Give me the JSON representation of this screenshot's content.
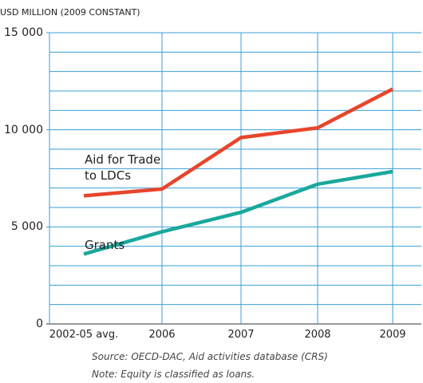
{
  "chart_data": {
    "type": "line",
    "y_label": "USD MILLION (2009 CONSTANT)",
    "categories": [
      "2002-05 avg.",
      "2006",
      "2007",
      "2008",
      "2009"
    ],
    "series": [
      {
        "name": "Aid for Trade to LDCs",
        "color": "#e8452c",
        "values": [
          6600,
          6950,
          9600,
          10100,
          12100
        ]
      },
      {
        "name": "Grants",
        "color": "#1aa89c",
        "values": [
          3600,
          4750,
          5750,
          7200,
          7850
        ]
      }
    ],
    "ylim": [
      0,
      15000
    ],
    "yticks": [
      0,
      {
        "value": 5000,
        "label": "5 000"
      },
      {
        "value": 10000,
        "label": "10 000"
      },
      {
        "value": 15000,
        "label": "15 000"
      }
    ],
    "minor_grid": [
      1000,
      2000,
      3000,
      4000,
      6000,
      7000,
      8000,
      9000,
      11000,
      12000,
      13000,
      14000
    ],
    "grid": true,
    "grid_color": "#3a9fd8",
    "source": "Source: OECD-DAC, Aid activities database (CRS)",
    "note": "Note: Equity is classified as loans."
  }
}
